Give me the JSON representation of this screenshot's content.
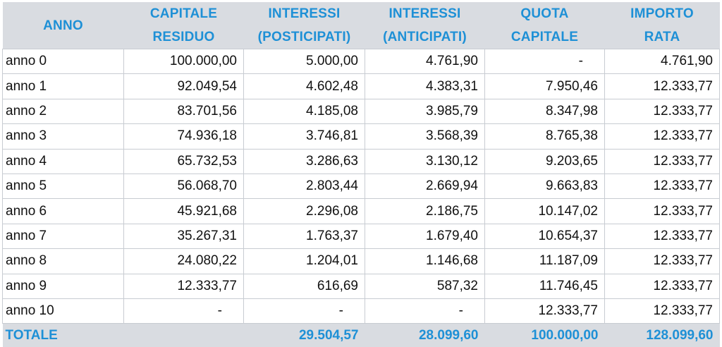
{
  "headers": [
    {
      "line1": "ANNO",
      "line2": ""
    },
    {
      "line1": "CAPITALE",
      "line2": "RESIDUO"
    },
    {
      "line1": "INTERESSI",
      "line2": "(POSTICIPATI)"
    },
    {
      "line1": "INTERESSI",
      "line2": "(ANTICIPATI)"
    },
    {
      "line1": "QUOTA",
      "line2": "CAPITALE"
    },
    {
      "line1": "IMPORTO",
      "line2": "RATA"
    }
  ],
  "rows": [
    [
      "anno 0",
      "100.000,00",
      "5.000,00",
      "4.761,90",
      "-",
      "4.761,90"
    ],
    [
      "anno 1",
      "92.049,54",
      "4.602,48",
      "4.383,31",
      "7.950,46",
      "12.333,77"
    ],
    [
      "anno 2",
      "83.701,56",
      "4.185,08",
      "3.985,79",
      "8.347,98",
      "12.333,77"
    ],
    [
      "anno 3",
      "74.936,18",
      "3.746,81",
      "3.568,39",
      "8.765,38",
      "12.333,77"
    ],
    [
      "anno 4",
      "65.732,53",
      "3.286,63",
      "3.130,12",
      "9.203,65",
      "12.333,77"
    ],
    [
      "anno 5",
      "56.068,70",
      "2.803,44",
      "2.669,94",
      "9.663,83",
      "12.333,77"
    ],
    [
      "anno 6",
      "45.921,68",
      "2.296,08",
      "2.186,75",
      "10.147,02",
      "12.333,77"
    ],
    [
      "anno 7",
      "35.267,31",
      "1.763,37",
      "1.679,40",
      "10.654,37",
      "12.333,77"
    ],
    [
      "anno 8",
      "24.080,22",
      "1.204,01",
      "1.146,68",
      "11.187,09",
      "12.333,77"
    ],
    [
      "anno 9",
      "12.333,77",
      "616,69",
      "587,32",
      "11.746,45",
      "12.333,77"
    ],
    [
      "anno 10",
      "-",
      "-",
      "-",
      "12.333,77",
      "12.333,77"
    ]
  ],
  "totals": [
    "TOTALE",
    "",
    "29.504,57",
    "28.099,60",
    "100.000,00",
    "128.099,60"
  ],
  "colors": {
    "header_bg": "#d9dce1",
    "header_text": "#1e90d6",
    "grid": "#c8ccd2"
  }
}
